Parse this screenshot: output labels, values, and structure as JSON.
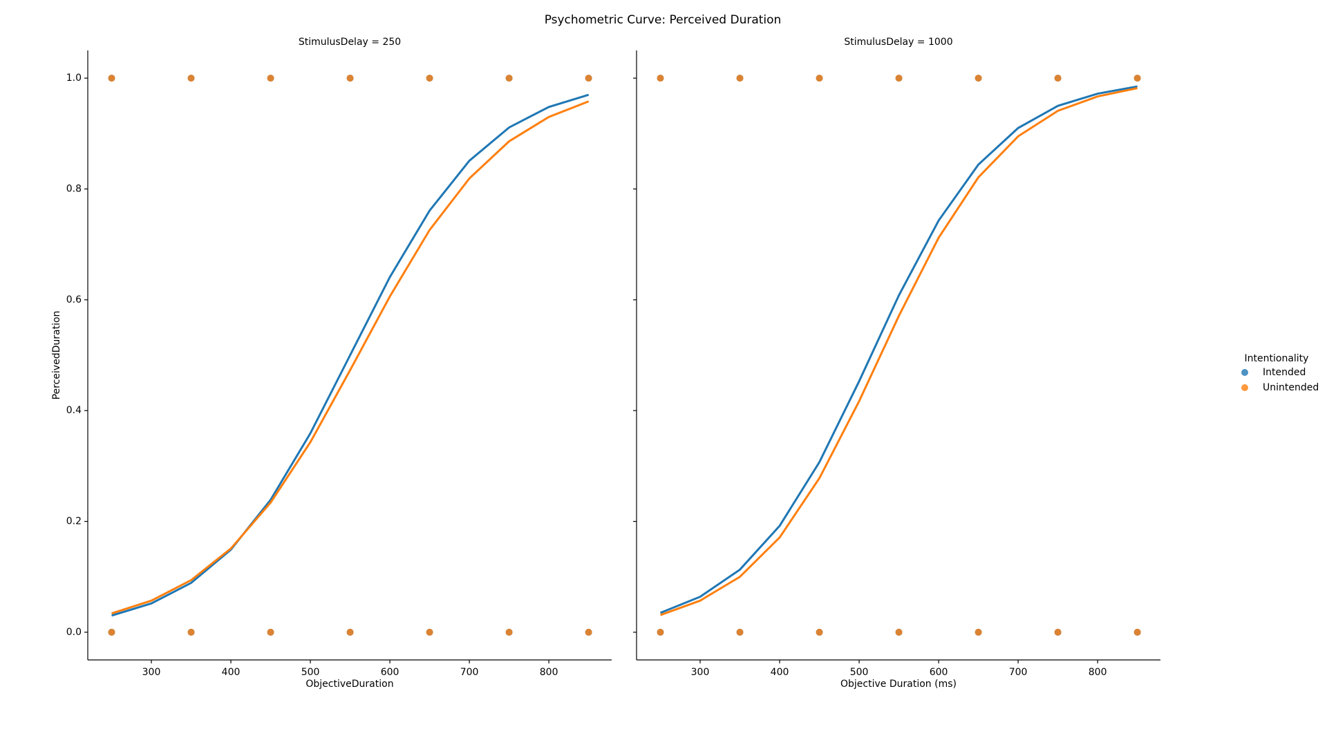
{
  "title": "Psychometric Curve: Perceived Duration",
  "legend": {
    "title": "Intentionality",
    "location": "right"
  },
  "chart_data": [
    {
      "type": "scatter",
      "title": "StimulusDelay = 250",
      "x_label": "ObjectiveDuration",
      "y_label": "PerceivedDuration",
      "xlim": [
        220,
        879
      ],
      "ylim": [
        -0.05,
        1.05
      ],
      "xticks": [
        300,
        400,
        500,
        600,
        700,
        800
      ],
      "yticks": [
        {
          "value": 0,
          "label": "0.0"
        },
        {
          "value": 0.2,
          "label": "0.2"
        },
        {
          "value": 0.4,
          "label": "0.4"
        },
        {
          "value": 0.6,
          "label": "0.6"
        },
        {
          "value": 0.8,
          "label": "0.8"
        },
        {
          "value": 1,
          "label": "1.0"
        }
      ],
      "series": [
        {
          "name": "Intended",
          "color": "#1f77b4",
          "x": [
            250,
            250,
            350,
            350,
            450,
            450,
            550,
            550,
            650,
            650,
            750,
            750,
            850,
            850
          ],
          "values": [
            0,
            1,
            0,
            1,
            0,
            1,
            0,
            1,
            0,
            1,
            0,
            1,
            0,
            1
          ],
          "fit_x": [
            250,
            300,
            350,
            400,
            450,
            500,
            550,
            600,
            650,
            700,
            750,
            800,
            850
          ],
          "fit_values": [
            0.03,
            0.052,
            0.089,
            0.149,
            0.239,
            0.359,
            0.5,
            0.641,
            0.761,
            0.851,
            0.911,
            0.948,
            0.97
          ]
        },
        {
          "name": "Unintended",
          "color": "#ff7f0e",
          "x": [
            250,
            250,
            350,
            350,
            450,
            450,
            550,
            550,
            650,
            650,
            750,
            750,
            850,
            850
          ],
          "values": [
            0,
            1,
            0,
            1,
            0,
            1,
            0,
            1,
            0,
            1,
            0,
            1,
            0,
            1
          ],
          "fit_x": [
            250,
            300,
            350,
            400,
            450,
            500,
            550,
            600,
            650,
            700,
            750,
            800,
            850
          ],
          "fit_values": [
            0.034,
            0.057,
            0.094,
            0.151,
            0.234,
            0.343,
            0.473,
            0.606,
            0.726,
            0.819,
            0.886,
            0.93,
            0.958
          ]
        }
      ]
    },
    {
      "type": "scatter",
      "title": "StimulusDelay = 1000",
      "x_label": "Objective Duration (ms)",
      "xlim": [
        220,
        879
      ],
      "ylim": [
        -0.05,
        1.05
      ],
      "xticks": [
        300,
        400,
        500,
        600,
        700,
        800
      ],
      "yticks": [
        0,
        0.2,
        0.4,
        0.6,
        0.8,
        1
      ],
      "series": [
        {
          "name": "Intended",
          "color": "#1f77b4",
          "x": [
            250,
            250,
            350,
            350,
            450,
            450,
            550,
            550,
            650,
            650,
            750,
            750,
            850,
            850
          ],
          "values": [
            0,
            1,
            0,
            1,
            0,
            1,
            0,
            1,
            0,
            1,
            0,
            1,
            0,
            1
          ],
          "fit_x": [
            250,
            300,
            350,
            400,
            450,
            500,
            550,
            600,
            650,
            700,
            750,
            800,
            850
          ],
          "fit_values": [
            0.035,
            0.064,
            0.113,
            0.192,
            0.307,
            0.453,
            0.608,
            0.743,
            0.844,
            0.91,
            0.95,
            0.972,
            0.985
          ]
        },
        {
          "name": "Unintended",
          "color": "#ff7f0e",
          "x": [
            250,
            250,
            350,
            350,
            450,
            450,
            550,
            550,
            650,
            650,
            750,
            750,
            850,
            850
          ],
          "values": [
            0,
            1,
            0,
            1,
            0,
            1,
            0,
            1,
            0,
            1,
            0,
            1,
            0,
            1
          ],
          "fit_x": [
            250,
            300,
            350,
            400,
            450,
            500,
            550,
            600,
            650,
            700,
            750,
            800,
            850
          ],
          "fit_values": [
            0.031,
            0.057,
            0.1,
            0.171,
            0.278,
            0.417,
            0.571,
            0.712,
            0.821,
            0.895,
            0.941,
            0.967,
            0.982
          ]
        }
      ]
    }
  ]
}
